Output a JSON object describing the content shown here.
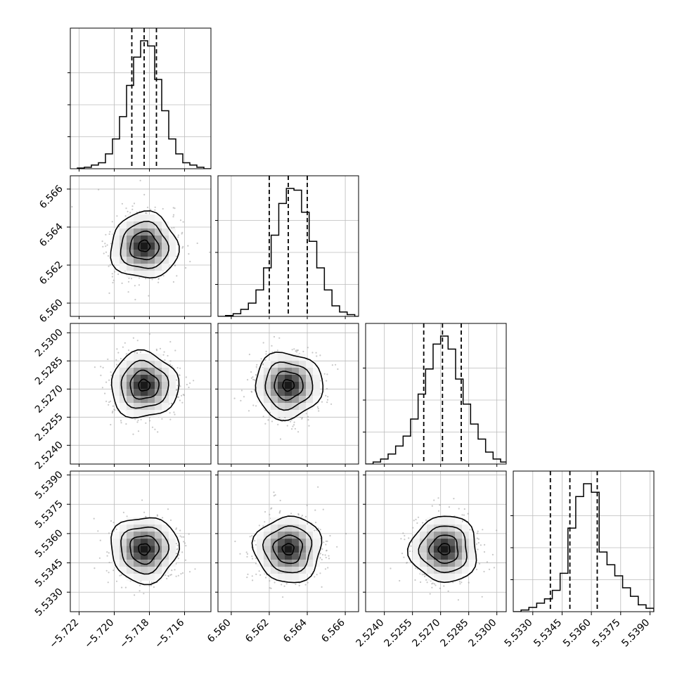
{
  "chart_data": {
    "type": "corner",
    "parameters": 4,
    "histogram": {
      "type": "histogram",
      "quantile_lines": "dashed",
      "panels": [
        {
          "param": 0,
          "xlim": [
            -5.7225,
            -5.7145
          ],
          "bin_start": -5.7221,
          "bin_width": 0.0004,
          "counts": [
            1,
            2,
            5,
            8,
            20,
            40,
            70,
            112,
            150,
            172,
            165,
            120,
            78,
            40,
            20,
            8,
            5,
            2,
            0
          ],
          "quantiles": [
            -5.719,
            -5.7183,
            -5.7176
          ]
        },
        {
          "param": 1,
          "xlim": [
            6.5593,
            6.5667
          ],
          "bin_start": 6.5593,
          "bin_width": 0.0004,
          "counts": [
            0,
            1,
            3,
            8,
            15,
            30,
            55,
            92,
            128,
            145,
            143,
            118,
            85,
            55,
            30,
            12,
            5,
            2,
            0
          ],
          "quantiles": [
            6.562,
            6.563,
            6.564
          ]
        },
        {
          "param": 2,
          "xlim": [
            2.523,
            2.5305
          ],
          "bin_start": 2.523,
          "bin_width": 0.0004,
          "counts": [
            0,
            2,
            5,
            10,
            18,
            28,
            45,
            70,
            95,
            120,
            128,
            115,
            85,
            60,
            40,
            25,
            12,
            5,
            2
          ],
          "quantiles": [
            2.5261,
            2.5271,
            2.5281
          ]
        },
        {
          "param": 3,
          "xlim": [
            5.532,
            5.5392
          ],
          "bin_start": 5.532,
          "bin_width": 0.0004,
          "counts": [
            0,
            2,
            5,
            10,
            15,
            25,
            45,
            98,
            135,
            150,
            140,
            70,
            55,
            42,
            28,
            18,
            8,
            4,
            1
          ],
          "quantiles": [
            5.5339,
            5.5349,
            5.5363
          ]
        }
      ]
    },
    "scatter_density": {
      "type": "scatter",
      "contours": 4,
      "panels": [
        {
          "x_param": 0,
          "y_param": 1,
          "center": [
            -5.7183,
            6.563
          ]
        },
        {
          "x_param": 0,
          "y_param": 2,
          "center": [
            -5.7183,
            2.5272
          ]
        },
        {
          "x_param": 1,
          "y_param": 2,
          "center": [
            6.563,
            2.5272
          ]
        },
        {
          "x_param": 0,
          "y_param": 3,
          "center": [
            -5.7183,
            5.5352
          ]
        },
        {
          "x_param": 1,
          "y_param": 3,
          "center": [
            6.563,
            5.5352
          ]
        },
        {
          "x_param": 2,
          "y_param": 3,
          "center": [
            2.5272,
            5.5352
          ]
        }
      ]
    },
    "axes": [
      {
        "param": 0,
        "range": [
          -5.7225,
          -5.7145
        ],
        "ticks": [
          -5.722,
          -5.72,
          -5.718,
          -5.716
        ],
        "tick_labels": [
          "−5.722",
          "−5.720",
          "−5.718",
          "−5.716"
        ]
      },
      {
        "param": 1,
        "range": [
          6.5593,
          6.5667
        ],
        "ticks": [
          6.56,
          6.562,
          6.564,
          6.566
        ],
        "tick_labels": [
          "6.560",
          "6.562",
          "6.564",
          "6.566"
        ]
      },
      {
        "param": 2,
        "range": [
          2.523,
          2.5305
        ],
        "ticks": [
          2.524,
          2.5255,
          2.527,
          2.5285,
          2.53
        ],
        "tick_labels": [
          "2.5240",
          "2.5255",
          "2.5270",
          "2.5285",
          "2.5300"
        ]
      },
      {
        "param": 3,
        "range": [
          5.532,
          5.5392
        ],
        "ticks": [
          5.533,
          5.5345,
          5.536,
          5.5375,
          5.539
        ],
        "tick_labels": [
          "5.5330",
          "5.5345",
          "5.5360",
          "5.5375",
          "5.5390"
        ]
      }
    ],
    "grid": true,
    "title": "",
    "legend": "none"
  }
}
